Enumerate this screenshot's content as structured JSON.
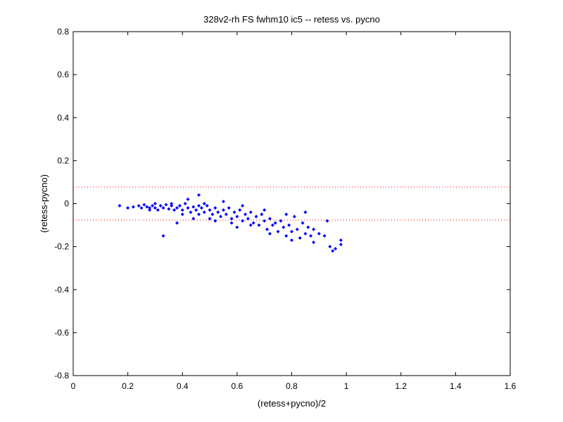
{
  "chart_data": {
    "type": "scatter",
    "title": "328v2-rh FS fwhm10 ic5 -- retess vs. pycno",
    "xlabel": "(retess+pycno)/2",
    "ylabel": "(retess-pycno)",
    "xlim": [
      0,
      1.6
    ],
    "ylim": [
      -0.8,
      0.8
    ],
    "xticks": [
      "0",
      "0.2",
      "0.4",
      "0.6",
      "0.8",
      "1",
      "1.2",
      "1.4",
      "1.6"
    ],
    "yticks": [
      "0.8",
      "0.6",
      "0.4",
      "0.2",
      "0",
      "-0.2",
      "-0.4",
      "-0.6",
      "-0.8"
    ],
    "grid": false,
    "marker_color": "#0000ff",
    "reference_lines": [
      {
        "y": 0.077,
        "color": "#ff0000",
        "style": "dotted"
      },
      {
        "y": -0.077,
        "color": "#ff0000",
        "style": "dotted"
      }
    ],
    "series": [
      {
        "color": "#0000ff",
        "marker": "diamond",
        "points": [
          [
            0.17,
            -0.01
          ],
          [
            0.2,
            -0.02
          ],
          [
            0.22,
            -0.015
          ],
          [
            0.24,
            -0.01
          ],
          [
            0.25,
            -0.02
          ],
          [
            0.26,
            -0.005
          ],
          [
            0.27,
            -0.015
          ],
          [
            0.28,
            -0.02
          ],
          [
            0.29,
            -0.01
          ],
          [
            0.3,
            0.0
          ],
          [
            0.3,
            -0.02
          ],
          [
            0.31,
            -0.03
          ],
          [
            0.32,
            -0.01
          ],
          [
            0.33,
            -0.02
          ],
          [
            0.34,
            -0.005
          ],
          [
            0.35,
            -0.025
          ],
          [
            0.36,
            -0.01
          ],
          [
            0.37,
            -0.03
          ],
          [
            0.38,
            -0.02
          ],
          [
            0.39,
            -0.01
          ],
          [
            0.4,
            -0.03
          ],
          [
            0.41,
            0.0
          ],
          [
            0.42,
            -0.02
          ],
          [
            0.43,
            -0.04
          ],
          [
            0.44,
            -0.015
          ],
          [
            0.45,
            -0.03
          ],
          [
            0.46,
            0.04
          ],
          [
            0.46,
            -0.05
          ],
          [
            0.47,
            -0.02
          ],
          [
            0.48,
            -0.04
          ],
          [
            0.49,
            -0.01
          ],
          [
            0.5,
            -0.03
          ],
          [
            0.51,
            -0.05
          ],
          [
            0.52,
            -0.02
          ],
          [
            0.53,
            -0.04
          ],
          [
            0.54,
            -0.06
          ],
          [
            0.55,
            -0.03
          ],
          [
            0.56,
            -0.05
          ],
          [
            0.57,
            -0.02
          ],
          [
            0.58,
            -0.07
          ],
          [
            0.59,
            -0.04
          ],
          [
            0.6,
            -0.06
          ],
          [
            0.61,
            -0.03
          ],
          [
            0.62,
            -0.08
          ],
          [
            0.63,
            -0.05
          ],
          [
            0.64,
            -0.07
          ],
          [
            0.65,
            -0.04
          ],
          [
            0.66,
            -0.09
          ],
          [
            0.67,
            -0.06
          ],
          [
            0.68,
            -0.1
          ],
          [
            0.69,
            -0.05
          ],
          [
            0.7,
            -0.08
          ],
          [
            0.71,
            -0.12
          ],
          [
            0.72,
            -0.07
          ],
          [
            0.73,
            -0.1
          ],
          [
            0.74,
            -0.09
          ],
          [
            0.75,
            -0.13
          ],
          [
            0.76,
            -0.08
          ],
          [
            0.77,
            -0.11
          ],
          [
            0.78,
            -0.15
          ],
          [
            0.79,
            -0.1
          ],
          [
            0.8,
            -0.13
          ],
          [
            0.81,
            -0.06
          ],
          [
            0.82,
            -0.12
          ],
          [
            0.83,
            -0.16
          ],
          [
            0.84,
            -0.09
          ],
          [
            0.85,
            -0.14
          ],
          [
            0.86,
            -0.11
          ],
          [
            0.87,
            -0.15
          ],
          [
            0.88,
            -0.12
          ],
          [
            0.9,
            -0.14
          ],
          [
            0.92,
            -0.15
          ],
          [
            0.93,
            -0.08
          ],
          [
            0.94,
            -0.2
          ],
          [
            0.95,
            -0.22
          ],
          [
            0.96,
            -0.21
          ],
          [
            0.98,
            -0.17
          ],
          [
            0.98,
            -0.19
          ],
          [
            0.4,
            -0.05
          ],
          [
            0.38,
            -0.09
          ],
          [
            0.33,
            -0.15
          ],
          [
            0.44,
            -0.07
          ],
          [
            0.52,
            -0.08
          ],
          [
            0.6,
            -0.11
          ],
          [
            0.28,
            -0.03
          ],
          [
            0.36,
            0.0
          ],
          [
            0.42,
            0.02
          ],
          [
            0.48,
            0.0
          ],
          [
            0.55,
            0.01
          ],
          [
            0.62,
            -0.01
          ],
          [
            0.7,
            -0.03
          ],
          [
            0.78,
            -0.05
          ],
          [
            0.85,
            -0.04
          ],
          [
            0.5,
            -0.07
          ],
          [
            0.65,
            -0.1
          ],
          [
            0.72,
            -0.14
          ],
          [
            0.8,
            -0.17
          ],
          [
            0.88,
            -0.18
          ],
          [
            0.58,
            -0.09
          ],
          [
            0.46,
            -0.01
          ]
        ]
      }
    ]
  }
}
